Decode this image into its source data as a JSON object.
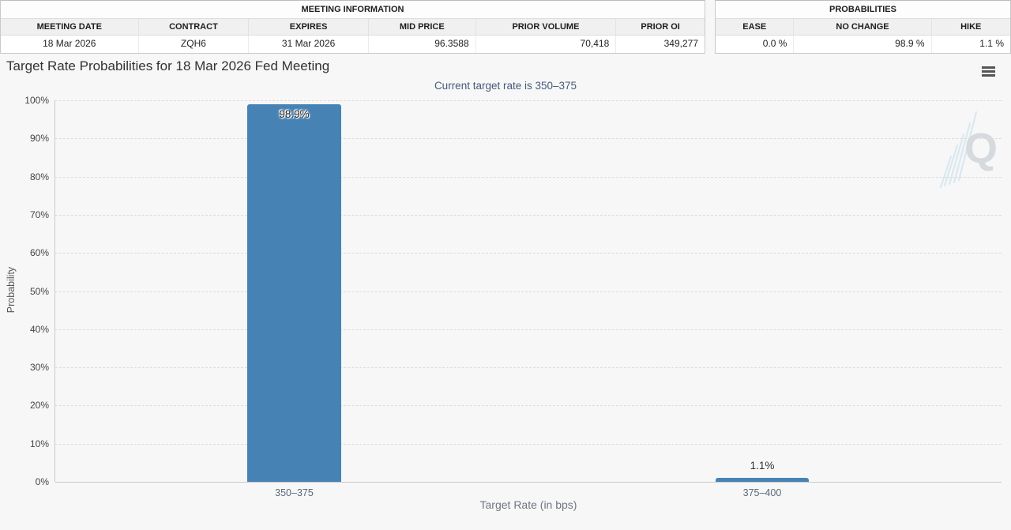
{
  "meeting_info_table": {
    "group_header": "MEETING INFORMATION",
    "columns": [
      "MEETING DATE",
      "CONTRACT",
      "EXPIRES",
      "MID PRICE",
      "PRIOR VOLUME",
      "PRIOR OI"
    ],
    "row": {
      "meeting_date": "18 Mar 2026",
      "contract": "ZQH6",
      "expires": "31 Mar 2026",
      "mid_price": "96.3588",
      "prior_volume": "70,418",
      "prior_oi": "349,277"
    }
  },
  "probabilities_table": {
    "group_header": "PROBABILITIES",
    "columns": [
      "EASE",
      "NO CHANGE",
      "HIKE"
    ],
    "row": {
      "ease": "0.0 %",
      "no_change": "98.9 %",
      "hike": "1.1 %"
    }
  },
  "chart": {
    "title": "Target Rate Probabilities for 18 Mar 2026 Fed Meeting",
    "subtitle": "Current target rate is 350–375",
    "menu_icon": "hamburger-menu-icon",
    "watermark_letter": "Q",
    "colors": {
      "bar": "#4682b4",
      "axis_line": "#c9c9c9",
      "gridline": "#dcdcdc",
      "title": "#333333",
      "subtitle": "#47597a",
      "background": "#f7f7f7"
    }
  },
  "chart_data": {
    "type": "bar",
    "title": "Target Rate Probabilities for 18 Mar 2026 Fed Meeting",
    "subtitle": "Current target rate is 350–375",
    "categories": [
      "350–375",
      "375–400"
    ],
    "values": [
      98.9,
      1.1
    ],
    "data_labels": [
      "98.9%",
      "1.1%"
    ],
    "xlabel": "Target Rate (in bps)",
    "ylabel": "Probability",
    "ylim": [
      0,
      100
    ],
    "ytick_interval": 10,
    "ytick_labels": [
      "100%",
      "90%",
      "80%",
      "70%",
      "60%",
      "50%",
      "40%",
      "30%",
      "20%",
      "10%",
      "0%"
    ],
    "grid": "dashed-horizontal",
    "legend": "none",
    "bar_color": "#4682b4"
  }
}
